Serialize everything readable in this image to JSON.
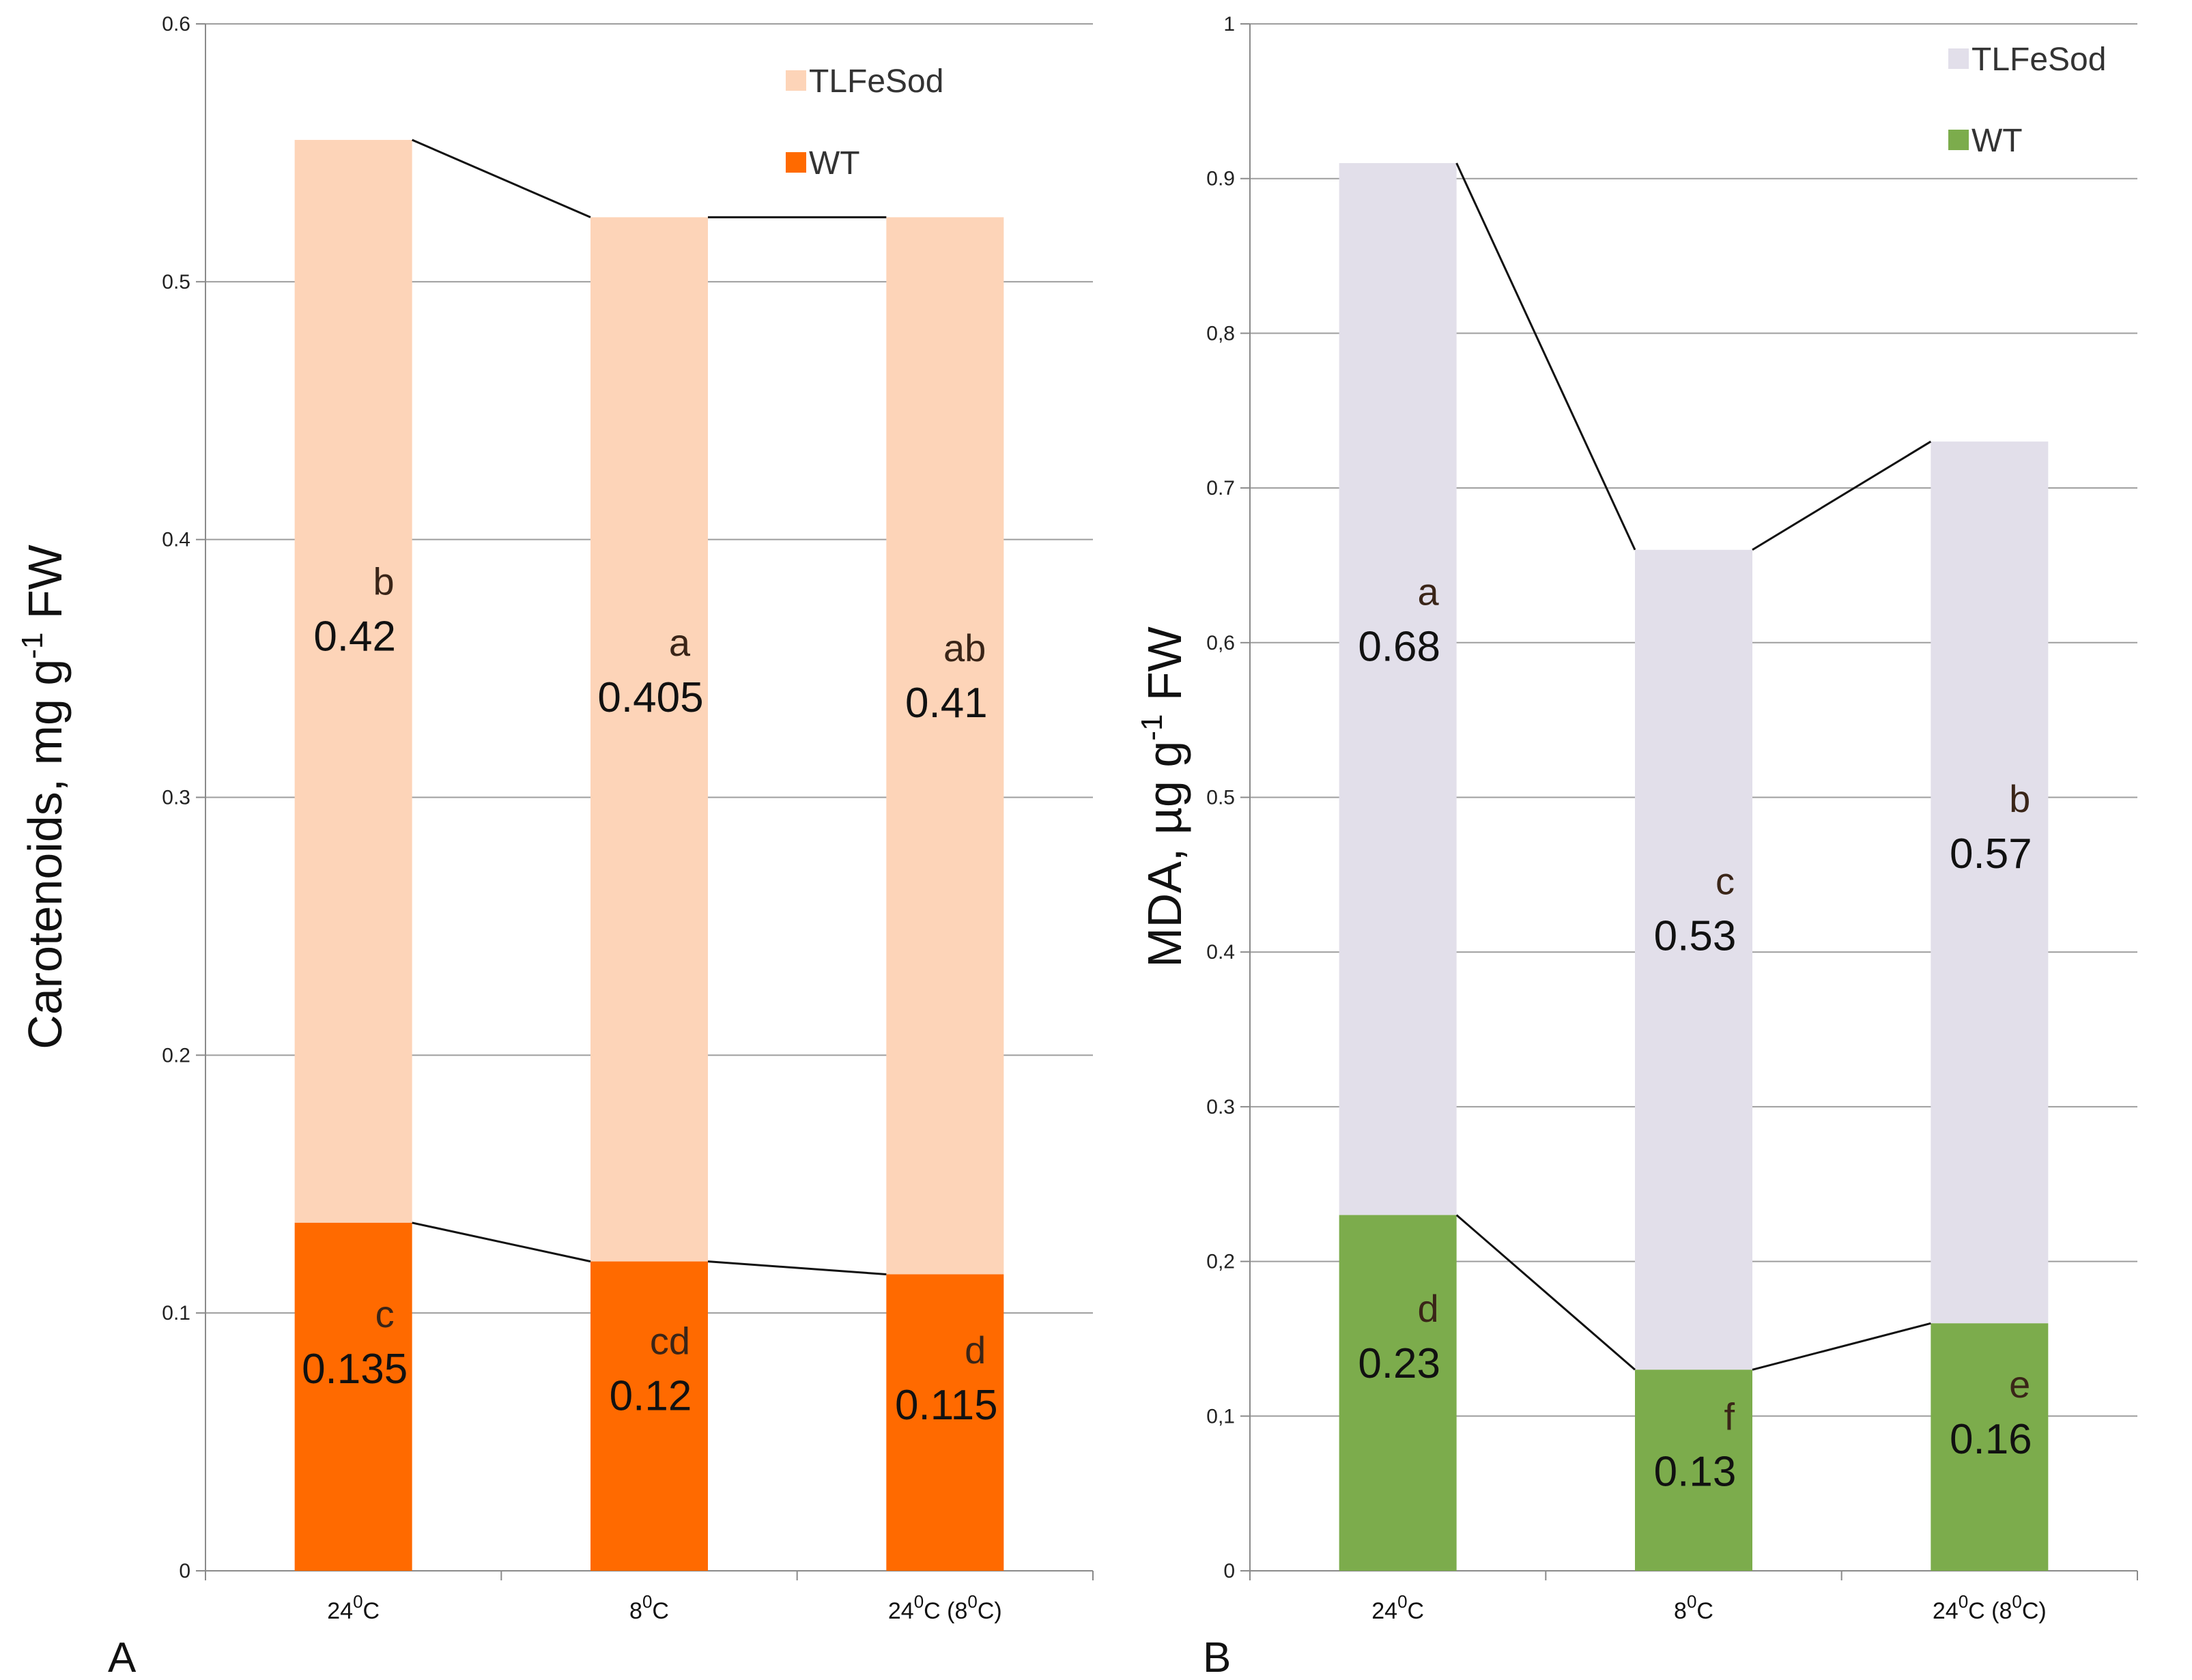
{
  "chart_data": [
    {
      "type": "bar",
      "panel_label": "A",
      "ylabel": "Carotenoids,  mg g",
      "ylabel_sup": "-1",
      "ylabel_tail": " FW",
      "ylim": [
        0,
        0.6
      ],
      "yticks": [
        "0",
        "0.1",
        "0.2",
        "0.3",
        "0.4",
        "0.5",
        "0.6"
      ],
      "grid": true,
      "legend_position": "top-right",
      "categories": [
        {
          "pre": "24",
          "sup": "0",
          "post": "C",
          "pre2": "",
          "sup2": "",
          "post2": ""
        },
        {
          "pre": "8",
          "sup": "0",
          "post": "C",
          "pre2": "",
          "sup2": "",
          "post2": ""
        },
        {
          "pre": "24",
          "sup": "0",
          "post": "C (8",
          "pre2": "",
          "sup2": "0",
          "post2": "C)"
        }
      ],
      "series": [
        {
          "name": "TLFeSod",
          "color": "#fdd4b8",
          "values": [
            0.42,
            0.405,
            0.41
          ],
          "value_labels": [
            "0.42",
            "0.405",
            "0.41"
          ],
          "letters": [
            "b",
            "a",
            "ab"
          ]
        },
        {
          "name": "WT",
          "color": "#ff6a00",
          "values": [
            0.135,
            0.12,
            0.115
          ],
          "value_labels": [
            "0.135",
            "0.12",
            "0.115"
          ],
          "letters": [
            "c",
            "cd",
            "d"
          ]
        }
      ]
    },
    {
      "type": "bar",
      "panel_label": "B",
      "ylabel": "MDA, µg g",
      "ylabel_sup": "-1",
      "ylabel_tail": " FW",
      "ylim": [
        0,
        1
      ],
      "yticks": [
        "0",
        "0,1",
        "0,2",
        "0.3",
        "0.4",
        "0.5",
        "0,6",
        "0.7",
        "0,8",
        "0.9",
        "1"
      ],
      "grid": true,
      "legend_position": "top-right",
      "categories": [
        {
          "pre": "24",
          "sup": "0",
          "post": "C",
          "pre2": "",
          "sup2": "",
          "post2": ""
        },
        {
          "pre": "8",
          "sup": "0",
          "post": "C",
          "pre2": "",
          "sup2": "",
          "post2": ""
        },
        {
          "pre": "24",
          "sup": "0",
          "post": "C (8",
          "pre2": "",
          "sup2": "0",
          "post2": "C)"
        }
      ],
      "series": [
        {
          "name": "TLFeSod",
          "color": "#e2dfea",
          "values": [
            0.68,
            0.53,
            0.57
          ],
          "value_labels": [
            "0.68",
            "0.53",
            "0.57"
          ],
          "letters": [
            "a",
            "c",
            "b"
          ]
        },
        {
          "name": "WT",
          "color": "#7cac4c",
          "values": [
            0.23,
            0.13,
            0.16
          ],
          "value_labels": [
            "0.23",
            "0.13",
            "0.16"
          ],
          "letters": [
            "d",
            "f",
            "e"
          ]
        }
      ]
    }
  ]
}
